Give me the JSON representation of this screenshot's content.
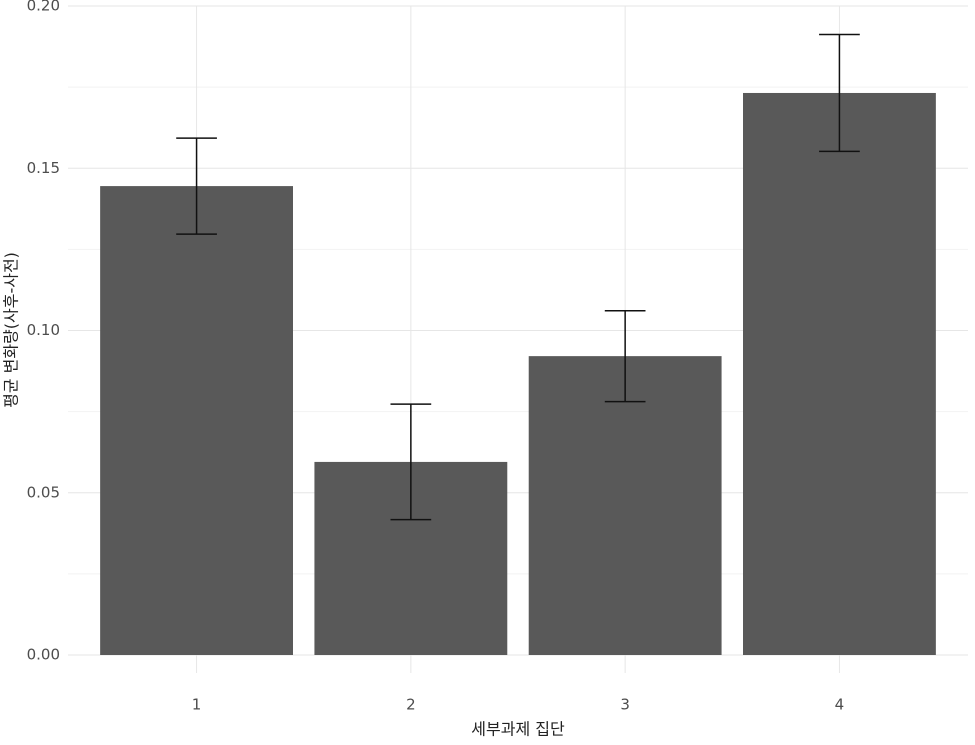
{
  "chart_data": {
    "type": "bar",
    "x_label": "세부과제 집단",
    "y_label": "평균 변화량(사후-사전)",
    "categories": [
      "1",
      "2",
      "3",
      "4"
    ],
    "values": [
      0.1445,
      0.0595,
      0.0921,
      0.1732
    ],
    "errors": [
      0.0148,
      0.0178,
      0.014,
      0.018
    ],
    "color": "#595959",
    "ylim": [
      0,
      0.2
    ],
    "yticks": [
      {
        "value": 0,
        "label": "0.00"
      },
      {
        "value": 0.05,
        "label": "0.05"
      },
      {
        "value": 0.1,
        "label": "0.10"
      },
      {
        "value": 0.15,
        "label": "0.15"
      },
      {
        "value": 0.2,
        "label": "0.20"
      }
    ],
    "minor_yticks": [
      0.025,
      0.075,
      0.125,
      0.175
    ],
    "grid": true
  }
}
